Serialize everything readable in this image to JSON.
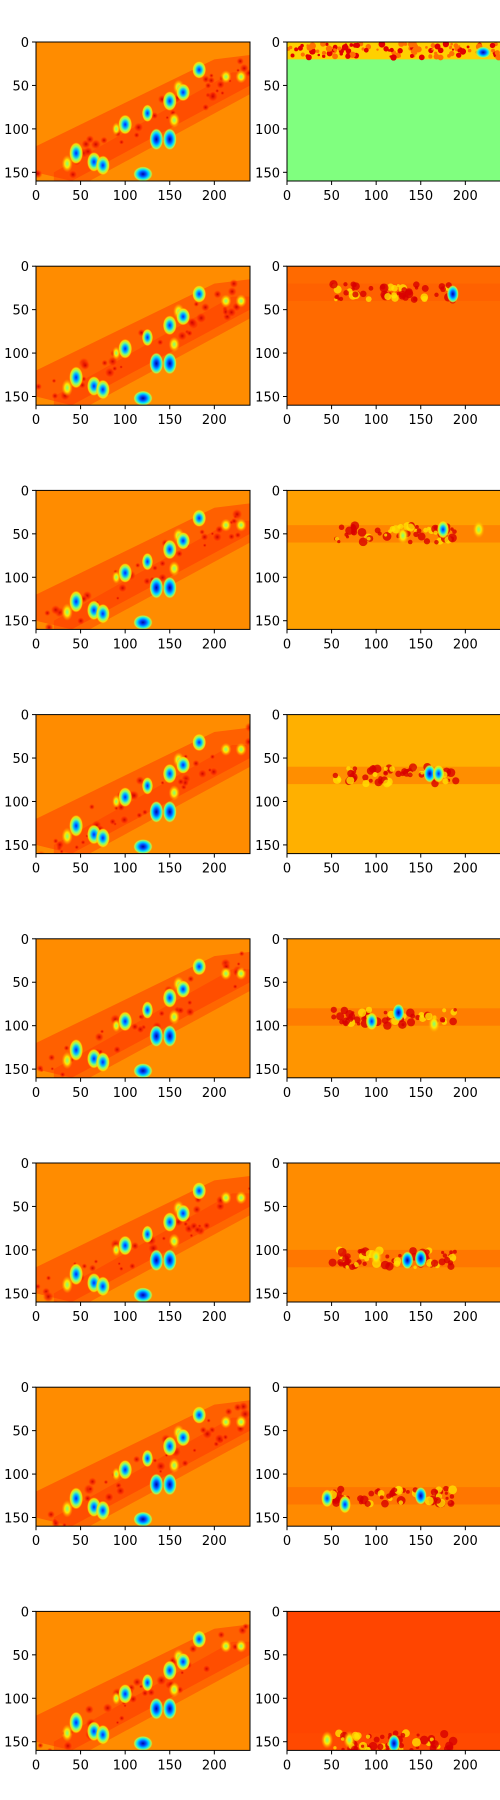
{
  "figure": {
    "rows": 8,
    "cols": 2
  },
  "colormap": "jet",
  "chart_data": [
    {
      "type": "heatmap",
      "panel": "row1-left",
      "xlim": [
        0,
        240
      ],
      "ylim": [
        160,
        0
      ],
      "xticks": [
        0,
        50,
        100,
        150,
        200
      ],
      "yticks": [
        0,
        50,
        100,
        150
      ],
      "title": "",
      "xlabel": "",
      "ylabel": ""
    },
    {
      "type": "heatmap",
      "panel": "row1-right",
      "xlim": [
        0,
        240
      ],
      "ylim": [
        160,
        0
      ],
      "xticks": [
        0,
        50,
        100,
        150,
        200
      ],
      "yticks": [
        0,
        50,
        100,
        150
      ],
      "title": "",
      "xlabel": "",
      "ylabel": "",
      "background": "#80FF7F",
      "band": {
        "y": [
          0,
          20
        ]
      }
    },
    {
      "type": "heatmap",
      "panel": "row2-left",
      "xlim": [
        0,
        240
      ],
      "ylim": [
        160,
        0
      ],
      "xticks": [
        0,
        50,
        100,
        150,
        200
      ],
      "yticks": [
        0,
        50,
        100,
        150
      ],
      "title": "",
      "xlabel": "",
      "ylabel": ""
    },
    {
      "type": "heatmap",
      "panel": "row2-right",
      "xlim": [
        0,
        240
      ],
      "ylim": [
        160,
        0
      ],
      "xticks": [
        0,
        50,
        100,
        150,
        200
      ],
      "yticks": [
        0,
        50,
        100,
        150
      ],
      "title": "",
      "xlabel": "",
      "ylabel": "",
      "background": "#FF6A00",
      "band": {
        "y": [
          20,
          40
        ]
      }
    },
    {
      "type": "heatmap",
      "panel": "row3-left",
      "xlim": [
        0,
        240
      ],
      "ylim": [
        160,
        0
      ],
      "xticks": [
        0,
        50,
        100,
        150,
        200
      ],
      "yticks": [
        0,
        50,
        100,
        150
      ],
      "title": "",
      "xlabel": "",
      "ylabel": ""
    },
    {
      "type": "heatmap",
      "panel": "row3-right",
      "xlim": [
        0,
        240
      ],
      "ylim": [
        160,
        0
      ],
      "xticks": [
        0,
        50,
        100,
        150,
        200
      ],
      "yticks": [
        0,
        50,
        100,
        150
      ],
      "title": "",
      "xlabel": "",
      "ylabel": "",
      "background": "#FFA000",
      "band": {
        "y": [
          40,
          60
        ]
      }
    },
    {
      "type": "heatmap",
      "panel": "row4-left",
      "xlim": [
        0,
        240
      ],
      "ylim": [
        160,
        0
      ],
      "xticks": [
        0,
        50,
        100,
        150,
        200
      ],
      "yticks": [
        0,
        50,
        100,
        150
      ],
      "title": "",
      "xlabel": "",
      "ylabel": ""
    },
    {
      "type": "heatmap",
      "panel": "row4-right",
      "xlim": [
        0,
        240
      ],
      "ylim": [
        160,
        0
      ],
      "xticks": [
        0,
        50,
        100,
        150,
        200
      ],
      "yticks": [
        0,
        50,
        100,
        150
      ],
      "title": "",
      "xlabel": "",
      "ylabel": "",
      "background": "#FFB000",
      "band": {
        "y": [
          60,
          80
        ]
      }
    },
    {
      "type": "heatmap",
      "panel": "row5-left",
      "xlim": [
        0,
        240
      ],
      "ylim": [
        160,
        0
      ],
      "xticks": [
        0,
        50,
        100,
        150,
        200
      ],
      "yticks": [
        0,
        50,
        100,
        150
      ],
      "title": "",
      "xlabel": "",
      "ylabel": ""
    },
    {
      "type": "heatmap",
      "panel": "row5-right",
      "xlim": [
        0,
        240
      ],
      "ylim": [
        160,
        0
      ],
      "xticks": [
        0,
        50,
        100,
        150,
        200
      ],
      "yticks": [
        0,
        50,
        100,
        150
      ],
      "title": "",
      "xlabel": "",
      "ylabel": "",
      "background": "#FF9500",
      "band": {
        "y": [
          80,
          100
        ]
      }
    },
    {
      "type": "heatmap",
      "panel": "row6-left",
      "xlim": [
        0,
        240
      ],
      "ylim": [
        160,
        0
      ],
      "xticks": [
        0,
        50,
        100,
        150,
        200
      ],
      "yticks": [
        0,
        50,
        100,
        150
      ],
      "title": "",
      "xlabel": "",
      "ylabel": ""
    },
    {
      "type": "heatmap",
      "panel": "row6-right",
      "xlim": [
        0,
        240
      ],
      "ylim": [
        160,
        0
      ],
      "xticks": [
        0,
        50,
        100,
        150,
        200
      ],
      "yticks": [
        0,
        50,
        100,
        150
      ],
      "title": "",
      "xlabel": "",
      "ylabel": "",
      "background": "#FF8C00",
      "band": {
        "y": [
          100,
          120
        ]
      }
    },
    {
      "type": "heatmap",
      "panel": "row7-left",
      "xlim": [
        0,
        240
      ],
      "ylim": [
        160,
        0
      ],
      "xticks": [
        0,
        50,
        100,
        150,
        200
      ],
      "yticks": [
        0,
        50,
        100,
        150
      ],
      "title": "",
      "xlabel": "",
      "ylabel": ""
    },
    {
      "type": "heatmap",
      "panel": "row7-right",
      "xlim": [
        0,
        240
      ],
      "ylim": [
        160,
        0
      ],
      "xticks": [
        0,
        50,
        100,
        150,
        200
      ],
      "yticks": [
        0,
        50,
        100,
        150
      ],
      "title": "",
      "xlabel": "",
      "ylabel": "",
      "background": "#FF8A00",
      "band": {
        "y": [
          115,
          135
        ]
      }
    },
    {
      "type": "heatmap",
      "panel": "row8-left",
      "xlim": [
        0,
        240
      ],
      "ylim": [
        160,
        0
      ],
      "xticks": [
        0,
        50,
        100,
        150,
        200
      ],
      "yticks": [
        0,
        50,
        100,
        150
      ],
      "title": "",
      "xlabel": "",
      "ylabel": ""
    },
    {
      "type": "heatmap",
      "panel": "row8-right",
      "xlim": [
        0,
        240
      ],
      "ylim": [
        160,
        0
      ],
      "xticks": [
        0,
        50,
        100,
        150,
        200
      ],
      "yticks": [
        0,
        50,
        100,
        150
      ],
      "title": "",
      "xlabel": "",
      "ylabel": "",
      "background": "#FF4500",
      "band": {
        "y": [
          140,
          160
        ]
      }
    }
  ]
}
